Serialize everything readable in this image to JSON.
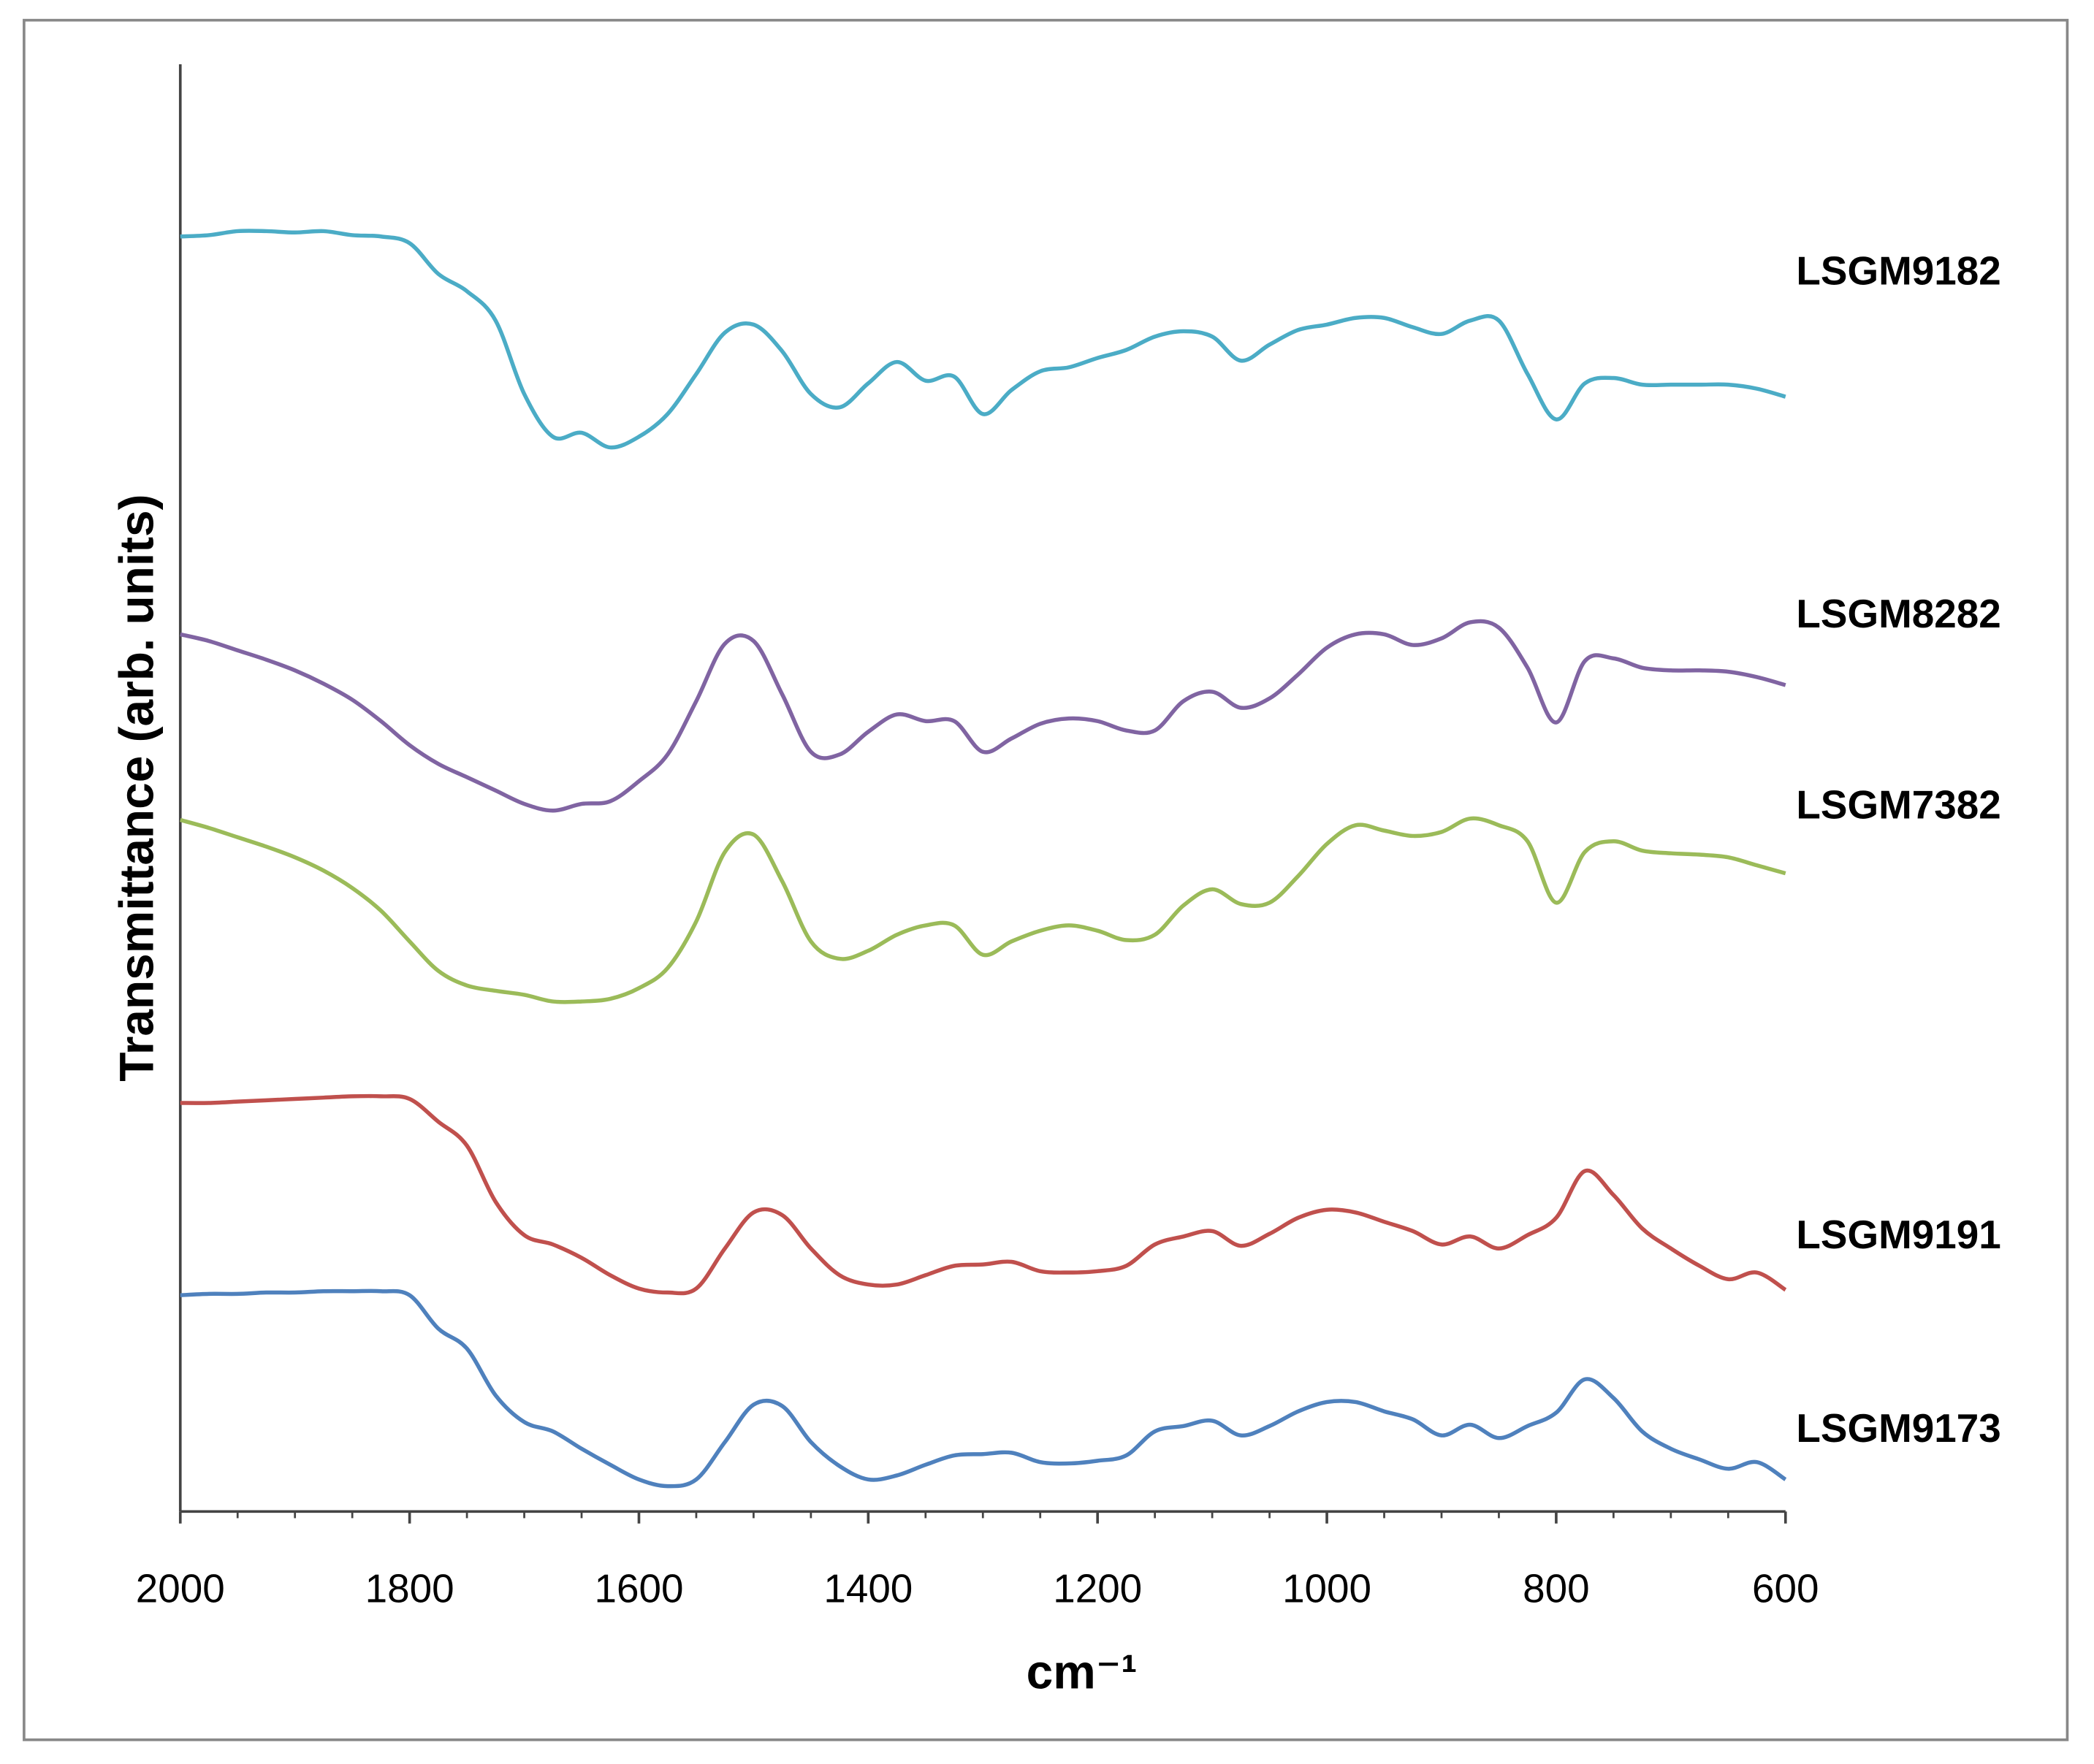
{
  "chart_data": {
    "type": "line",
    "xlabel": "cm⁻¹",
    "ylabel": "Transmittance (arb. units)",
    "xlim": [
      2000,
      600
    ],
    "xticks": [
      2000,
      1800,
      1600,
      1400,
      1200,
      1000,
      800,
      600
    ],
    "xminorticks": [
      1950,
      1900,
      1850,
      1750,
      1700,
      1650,
      1550,
      1500,
      1450,
      1350,
      1300,
      1250,
      1150,
      1100,
      1050,
      950,
      900,
      850,
      750,
      700,
      650
    ],
    "ylim": [
      0,
      1084
    ],
    "x": [
      2000,
      1975,
      1950,
      1925,
      1900,
      1875,
      1850,
      1825,
      1800,
      1775,
      1750,
      1725,
      1700,
      1675,
      1650,
      1625,
      1600,
      1575,
      1550,
      1525,
      1500,
      1475,
      1450,
      1425,
      1400,
      1375,
      1350,
      1325,
      1300,
      1275,
      1250,
      1225,
      1200,
      1175,
      1150,
      1125,
      1100,
      1075,
      1050,
      1025,
      1000,
      975,
      950,
      925,
      900,
      875,
      850,
      825,
      800,
      775,
      750,
      725,
      700,
      675,
      650,
      625,
      600
    ],
    "series": [
      {
        "name": "LSGM9182",
        "color": "#4bacc6",
        "values": [
          955,
          956,
          959,
          959,
          958,
          959,
          956,
          955,
          950,
          927,
          914,
          892,
          837,
          805,
          808,
          797,
          805,
          822,
          852,
          883,
          889,
          869,
          837,
          827,
          845,
          861,
          847,
          850,
          822,
          840,
          854,
          857,
          864,
          870,
          880,
          884,
          880,
          862,
          874,
          885,
          889,
          894,
          894,
          887,
          882,
          892,
          892,
          852,
          818,
          845,
          849,
          844,
          844,
          844,
          844,
          841,
          835
        ]
      },
      {
        "name": "LSGM8282",
        "color": "#8064a2",
        "values": [
          657,
          652,
          645,
          638,
          630,
          620,
          608,
          592,
          574,
          560,
          550,
          540,
          530,
          525,
          530,
          532,
          547,
          567,
          607,
          650,
          652,
          612,
          569,
          567,
          584,
          597,
          592,
          592,
          569,
          579,
          590,
          594,
          592,
          585,
          585,
          607,
          614,
          602,
          609,
          627,
          647,
          657,
          657,
          649,
          654,
          666,
          662,
          632,
          591,
          637,
          639,
          632,
          630,
          630,
          629,
          625,
          619
        ]
      },
      {
        "name": "LSGM7382",
        "color": "#9bbb59",
        "values": [
          518,
          512,
          505,
          498,
          490,
          480,
          467,
          450,
          427,
          405,
          394,
          390,
          387,
          382,
          382,
          384,
          392,
          407,
          442,
          494,
          507,
          472,
          427,
          414,
          420,
          432,
          439,
          439,
          417,
          427,
          435,
          439,
          435,
          428,
          432,
          454,
          466,
          455,
          456,
          476,
          500,
          514,
          510,
          506,
          509,
          519,
          514,
          502,
          456,
          494,
          502,
          495,
          493,
          492,
          490,
          484,
          478
        ]
      },
      {
        "name": "LSGM9191",
        "color": "#c0504d",
        "values": [
          306,
          306,
          307,
          308,
          309,
          310,
          311,
          311,
          309,
          292,
          274,
          232,
          207,
          200,
          190,
          177,
          167,
          164,
          167,
          197,
          224,
          222,
          197,
          177,
          170,
          170,
          177,
          184,
          185,
          187,
          180,
          179,
          180,
          184,
          200,
          206,
          210,
          199,
          208,
          220,
          226,
          224,
          217,
          210,
          200,
          206,
          197,
          207,
          220,
          255,
          237,
          212,
          197,
          184,
          174,
          179,
          166
        ]
      },
      {
        "name": "LSGM9173",
        "color": "#4f81bd",
        "values": [
          162,
          163,
          163,
          164,
          164,
          165,
          165,
          165,
          162,
          137,
          122,
          87,
          67,
          60,
          47,
          35,
          24,
          19,
          24,
          52,
          80,
          79,
          52,
          34,
          24,
          27,
          35,
          42,
          43,
          44,
          37,
          36,
          38,
          42,
          60,
          64,
          68,
          57,
          64,
          75,
          82,
          82,
          75,
          69,
          57,
          65,
          55,
          64,
          74,
          99,
          85,
          60,
          47,
          39,
          32,
          37,
          24
        ]
      }
    ]
  }
}
